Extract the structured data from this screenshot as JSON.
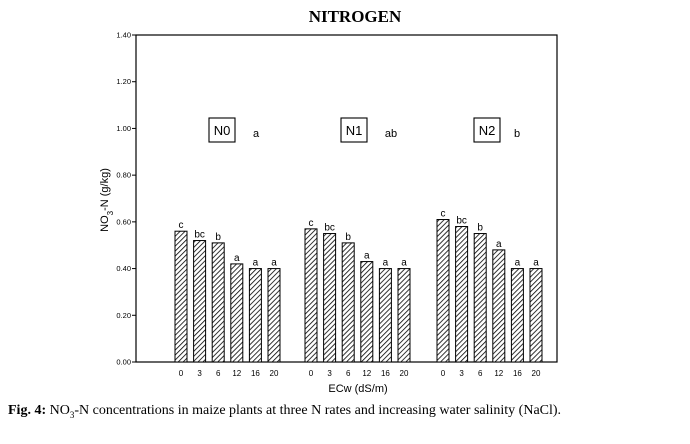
{
  "caption": {
    "label": "Fig. 4:",
    "text_part1": "NO",
    "text_sub": "3",
    "text_part2": "-N concentrations in maize plants at three N rates and increasing water salinity (NaCl)."
  },
  "chart_data": {
    "type": "bar",
    "title": "NITROGEN",
    "xlabel": "ECw (dS/m)",
    "ylabel": {
      "part1": "NO",
      "sub": "3",
      "part2": "-N (g/kg)"
    },
    "ylim": [
      0,
      1.4
    ],
    "yticks": [
      "0.00",
      "0.20",
      "0.40",
      "0.60",
      "0.80",
      "1.00",
      "1.20",
      "1.40"
    ],
    "grid": false,
    "categories": [
      "0",
      "3",
      "6",
      "12",
      "16",
      "20"
    ],
    "groups": [
      {
        "name": "N0",
        "significance": "a",
        "values": [
          0.56,
          0.52,
          0.51,
          0.42,
          0.4,
          0.4
        ],
        "letters": [
          "c",
          "bc",
          "b",
          "a",
          "a",
          "a"
        ]
      },
      {
        "name": "N1",
        "significance": "ab",
        "values": [
          0.57,
          0.55,
          0.51,
          0.43,
          0.4,
          0.4
        ],
        "letters": [
          "c",
          "bc",
          "b",
          "a",
          "a",
          "a"
        ]
      },
      {
        "name": "N2",
        "significance": "b",
        "values": [
          0.61,
          0.58,
          0.55,
          0.48,
          0.4,
          0.4
        ],
        "letters": [
          "c",
          "bc",
          "b",
          "a",
          "a",
          "a"
        ]
      }
    ]
  }
}
